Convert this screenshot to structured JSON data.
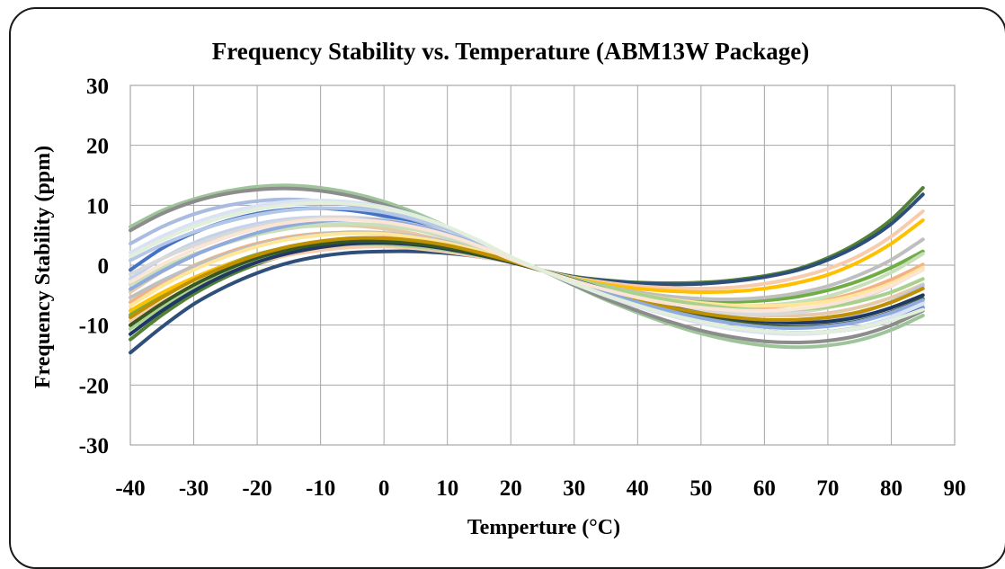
{
  "chart_data": {
    "type": "line",
    "title": "Frequency Stability  vs. Temperature  (ABM13W Package)",
    "xlabel": "Temperture (°C)",
    "ylabel": "Frequency Stability (ppm)",
    "xlim": [
      -40,
      90
    ],
    "ylim": [
      -30,
      30
    ],
    "xticks": [
      "-40",
      "-30",
      "-20",
      "-10",
      "0",
      "10",
      "20",
      "30",
      "40",
      "50",
      "60",
      "70",
      "80",
      "90"
    ],
    "yticks": [
      "30",
      "20",
      "10",
      "0",
      "-10",
      "-20",
      "-30"
    ],
    "grid": true,
    "x": [
      -40,
      -35,
      -30,
      -25,
      -20,
      -15,
      -10,
      -5,
      0,
      5,
      10,
      15,
      20,
      25,
      30,
      35,
      40,
      45,
      50,
      55,
      60,
      65,
      70,
      75,
      80,
      85
    ],
    "series": [
      {
        "color": "#9ec59a",
        "values": [
          6.4,
          9.1,
          11.0,
          12.3,
          13.1,
          13.3,
          12.9,
          12.0,
          10.6,
          8.7,
          6.4,
          3.9,
          1.3,
          -0.9,
          -3.4,
          -5.8,
          -7.9,
          -9.8,
          -11.4,
          -12.6,
          -13.4,
          -13.7,
          -13.4,
          -12.5,
          -10.8,
          -8.4
        ]
      },
      {
        "color": "#8c8c8c",
        "values": [
          5.8,
          8.6,
          10.6,
          11.9,
          12.6,
          12.8,
          12.4,
          11.5,
          10.1,
          8.3,
          6.1,
          3.7,
          1.2,
          -0.9,
          -3.3,
          -5.6,
          -7.6,
          -9.4,
          -10.9,
          -12.0,
          -12.7,
          -12.9,
          -12.6,
          -11.7,
          -10.0,
          -7.6
        ]
      },
      {
        "color": "#a9bce0",
        "values": [
          3.6,
          6.4,
          8.5,
          9.9,
          10.7,
          11.0,
          10.7,
          10.0,
          8.8,
          7.2,
          5.3,
          3.1,
          0.9,
          -0.9,
          -3.0,
          -5.0,
          -6.8,
          -8.3,
          -9.6,
          -10.6,
          -11.2,
          -11.4,
          -11.1,
          -10.3,
          -8.9,
          -6.9
        ]
      },
      {
        "color": "#4472c4",
        "values": [
          -0.8,
          2.8,
          5.4,
          7.3,
          8.6,
          9.3,
          9.5,
          9.1,
          8.2,
          6.9,
          5.1,
          3.0,
          0.9,
          -0.9,
          -2.9,
          -4.9,
          -6.6,
          -8.1,
          -9.4,
          -10.4,
          -11.0,
          -11.3,
          -11.1,
          -10.5,
          -9.2,
          -7.2
        ]
      },
      {
        "color": "#c5d3ea",
        "values": [
          -2.3,
          1.1,
          3.7,
          5.6,
          6.9,
          7.7,
          8.0,
          7.8,
          7.1,
          6.0,
          4.5,
          2.6,
          0.8,
          -0.9,
          -2.7,
          -4.5,
          -6.0,
          -7.4,
          -8.5,
          -9.3,
          -9.9,
          -10.1,
          -9.9,
          -9.2,
          -8.0,
          -6.1
        ]
      },
      {
        "color": "#e6c9a8",
        "values": [
          -4.5,
          -1.1,
          1.6,
          3.7,
          5.2,
          6.2,
          6.6,
          6.6,
          6.1,
          5.2,
          3.9,
          2.3,
          0.7,
          -0.9,
          -2.5,
          -4.1,
          -5.5,
          -6.6,
          -7.5,
          -8.1,
          -8.4,
          -8.4,
          -8.0,
          -7.0,
          -5.4,
          -3.2
        ]
      },
      {
        "color": "#f4b183",
        "values": [
          -6.2,
          -2.9,
          -0.1,
          2.0,
          3.6,
          4.7,
          5.3,
          5.4,
          5.1,
          4.4,
          3.4,
          2.0,
          0.6,
          -0.9,
          -2.4,
          -3.8,
          -5.0,
          -6.0,
          -6.6,
          -7.0,
          -7.0,
          -6.6,
          -5.8,
          -4.4,
          -2.4,
          0.1
        ]
      },
      {
        "color": "#70ad47",
        "values": [
          -8.3,
          -5.0,
          -2.2,
          0.0,
          1.8,
          3.0,
          3.8,
          4.0,
          3.8,
          3.3,
          2.6,
          1.6,
          0.5,
          -0.9,
          -2.2,
          -3.5,
          -4.6,
          -5.4,
          -5.9,
          -6.1,
          -5.9,
          -5.3,
          -4.2,
          -2.6,
          -0.4,
          2.3
        ]
      },
      {
        "color": "#548235",
        "values": [
          -12.4,
          -8.3,
          -4.8,
          -2.0,
          0.2,
          1.8,
          2.8,
          3.3,
          3.3,
          3.0,
          2.4,
          1.5,
          0.5,
          -0.9,
          -1.9,
          -2.5,
          -2.9,
          -3.0,
          -2.9,
          -2.5,
          -1.8,
          -0.7,
          1.2,
          3.9,
          7.6,
          12.9
        ]
      },
      {
        "color": "#2e4f7a",
        "values": [
          -14.6,
          -10.3,
          -6.5,
          -3.6,
          -1.3,
          0.4,
          1.5,
          2.1,
          2.3,
          2.3,
          2.0,
          1.4,
          0.5,
          -0.9,
          -2.0,
          -2.6,
          -3.0,
          -3.2,
          -3.1,
          -2.7,
          -2.0,
          -0.9,
          0.9,
          3.4,
          6.9,
          11.8
        ]
      },
      {
        "color": "#f8cbad",
        "values": [
          -9.3,
          -6.2,
          -3.5,
          -1.3,
          0.4,
          1.7,
          2.5,
          3.0,
          3.1,
          2.8,
          2.2,
          1.4,
          0.5,
          -0.9,
          -2.1,
          -2.9,
          -3.5,
          -3.8,
          -3.9,
          -3.7,
          -3.1,
          -2.1,
          -0.6,
          1.6,
          4.8,
          9.0
        ]
      },
      {
        "color": "#ffc000",
        "values": [
          -7.6,
          -4.6,
          -2.1,
          0.0,
          1.6,
          2.8,
          3.6,
          4.0,
          4.0,
          3.6,
          2.9,
          1.8,
          0.6,
          -0.9,
          -2.2,
          -3.2,
          -3.9,
          -4.3,
          -4.5,
          -4.4,
          -3.9,
          -3.0,
          -1.6,
          0.6,
          3.6,
          7.5
        ]
      },
      {
        "color": "#bfbfbf",
        "values": [
          -5.4,
          -2.6,
          -0.2,
          1.8,
          3.4,
          4.5,
          5.2,
          5.5,
          5.4,
          4.8,
          3.9,
          2.5,
          0.8,
          -0.9,
          -2.3,
          -3.5,
          -4.5,
          -5.2,
          -5.6,
          -5.7,
          -5.4,
          -4.7,
          -3.5,
          -1.6,
          0.9,
          4.3
        ]
      },
      {
        "color": "#c9dfb9",
        "values": [
          -3.2,
          -0.5,
          1.8,
          3.6,
          5.1,
          6.1,
          6.7,
          6.9,
          6.6,
          5.9,
          4.7,
          3.0,
          1.0,
          -0.9,
          -2.5,
          -3.9,
          -5.1,
          -6.0,
          -6.6,
          -6.8,
          -6.7,
          -6.2,
          -5.2,
          -3.5,
          -1.2,
          1.9
        ]
      },
      {
        "color": "#d9d9d9",
        "values": [
          -1.5,
          1.1,
          3.3,
          5.1,
          6.5,
          7.4,
          7.9,
          8.0,
          7.6,
          6.7,
          5.3,
          3.4,
          1.1,
          -0.9,
          -2.7,
          -4.3,
          -5.7,
          -6.8,
          -7.6,
          -8.1,
          -8.2,
          -7.9,
          -7.1,
          -5.6,
          -3.5,
          -0.6
        ]
      },
      {
        "color": "#b4c7e7",
        "values": [
          0.8,
          3.4,
          5.5,
          7.2,
          8.4,
          9.2,
          9.5,
          9.4,
          8.8,
          7.7,
          6.0,
          3.8,
          1.2,
          -0.9,
          -2.9,
          -4.7,
          -6.3,
          -7.6,
          -8.6,
          -9.3,
          -9.7,
          -9.7,
          -9.2,
          -8.0,
          -6.1,
          -3.4
        ]
      },
      {
        "color": "#ffe699",
        "values": [
          -6.8,
          -3.5,
          -0.8,
          1.4,
          3.1,
          4.3,
          5.0,
          5.3,
          5.2,
          4.6,
          3.7,
          2.4,
          0.8,
          -0.9,
          -2.4,
          -3.7,
          -4.8,
          -5.7,
          -6.3,
          -6.7,
          -6.8,
          -6.6,
          -6.0,
          -4.8,
          -3.0,
          -0.4
        ]
      },
      {
        "color": "#a9d18e",
        "values": [
          -10.6,
          -6.9,
          -3.8,
          -1.3,
          0.7,
          2.1,
          3.0,
          3.5,
          3.5,
          3.1,
          2.5,
          1.6,
          0.5,
          -0.9,
          -2.3,
          -3.6,
          -4.8,
          -5.8,
          -6.6,
          -7.2,
          -7.5,
          -7.4,
          -7.0,
          -6.0,
          -4.5,
          -2.3
        ]
      },
      {
        "color": "#1f3864",
        "values": [
          -11.5,
          -7.6,
          -4.3,
          -1.6,
          0.5,
          2.0,
          3.0,
          3.6,
          3.7,
          3.4,
          2.7,
          1.7,
          0.5,
          -0.9,
          -2.5,
          -4.1,
          -5.6,
          -6.9,
          -8.0,
          -8.9,
          -9.4,
          -9.6,
          -9.4,
          -8.6,
          -7.1,
          -5.0
        ]
      },
      {
        "color": "#385723",
        "values": [
          -10.0,
          -6.4,
          -3.3,
          -0.8,
          1.2,
          2.6,
          3.5,
          4.0,
          4.0,
          3.6,
          2.9,
          1.8,
          0.6,
          -0.9,
          -2.6,
          -4.3,
          -5.9,
          -7.3,
          -8.5,
          -9.4,
          -10.0,
          -10.3,
          -10.1,
          -9.3,
          -7.8,
          -5.6
        ]
      },
      {
        "color": "#bf9000",
        "values": [
          -8.7,
          -5.4,
          -2.5,
          -0.2,
          1.7,
          3.1,
          4.0,
          4.5,
          4.5,
          4.1,
          3.3,
          2.1,
          0.7,
          -0.9,
          -2.6,
          -4.2,
          -5.7,
          -7.0,
          -8.0,
          -8.7,
          -9.1,
          -9.1,
          -8.7,
          -7.8,
          -6.2,
          -3.9
        ]
      },
      {
        "color": "#8faadc",
        "values": [
          -4.0,
          -1.0,
          1.6,
          3.7,
          5.4,
          6.6,
          7.3,
          7.6,
          7.4,
          6.6,
          5.2,
          3.3,
          1.1,
          -0.9,
          -2.8,
          -4.6,
          -6.2,
          -7.6,
          -8.8,
          -9.7,
          -10.3,
          -10.5,
          -10.2,
          -9.4,
          -7.9,
          -5.8
        ]
      },
      {
        "color": "#dae3f3",
        "values": [
          2.1,
          4.8,
          7.0,
          8.7,
          9.9,
          10.6,
          10.8,
          10.5,
          9.7,
          8.3,
          6.4,
          4.0,
          1.3,
          -0.9,
          -3.1,
          -5.1,
          -6.9,
          -8.4,
          -9.7,
          -10.7,
          -11.3,
          -11.5,
          -11.2,
          -10.3,
          -8.7,
          -6.4
        ]
      },
      {
        "color": "#fbe5d6",
        "values": [
          -2.8,
          0.1,
          2.6,
          4.6,
          6.1,
          7.1,
          7.6,
          7.6,
          7.2,
          6.3,
          5.0,
          3.2,
          1.0,
          -0.9,
          -2.6,
          -4.1,
          -5.4,
          -6.4,
          -7.1,
          -7.5,
          -7.6,
          -7.3,
          -6.6,
          -5.3,
          -3.4,
          -0.8
        ]
      },
      {
        "color": "#e2efda",
        "values": [
          1.5,
          4.2,
          6.4,
          8.1,
          9.3,
          10.1,
          10.4,
          10.2,
          9.5,
          8.2,
          6.4,
          4.1,
          1.4,
          -0.9,
          -3.0,
          -5.0,
          -6.7,
          -8.2,
          -9.4,
          -10.4,
          -11.0,
          -11.3,
          -11.1,
          -10.5,
          -9.2,
          -7.4
        ]
      }
    ]
  }
}
